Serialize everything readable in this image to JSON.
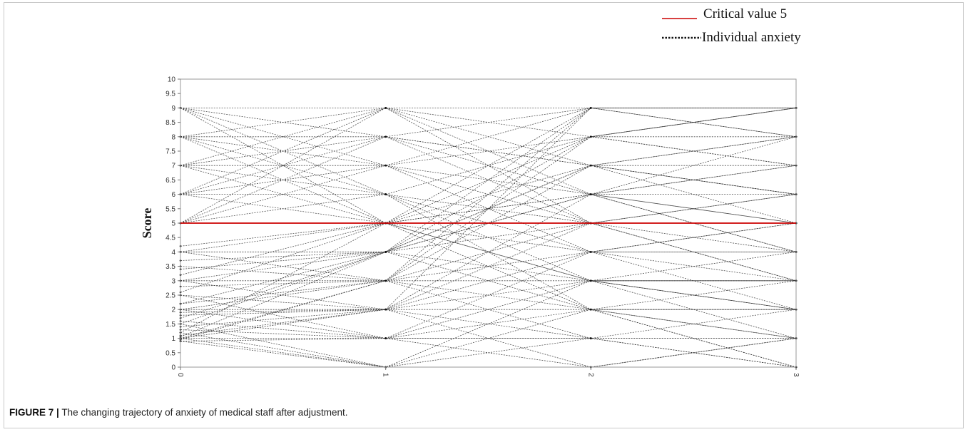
{
  "caption": {
    "label": "FIGURE 7 |",
    "text": "The changing trajectory of anxiety of medical staff after adjustment."
  },
  "chart_data": {
    "type": "line",
    "title": "",
    "xlabel": "",
    "ylabel": "Score",
    "x_ticks": [
      "0",
      "1",
      "2",
      "3"
    ],
    "x": [
      0,
      1,
      2,
      3
    ],
    "xlim": [
      0,
      3
    ],
    "ylim": [
      0,
      10
    ],
    "y_ticks": [
      "0",
      "0.5",
      "1",
      "1.5",
      "2",
      "2.5",
      "3",
      "3.5",
      "4",
      "4.5",
      "5",
      "5.5",
      "6",
      "6.5",
      "7",
      "7.5",
      "8",
      "8.5",
      "9",
      "9.5",
      "10"
    ],
    "grid": false,
    "legend_position": "top-right",
    "reference_line": {
      "name": "Critical value 5",
      "y": 5,
      "color": "#cc0000"
    },
    "series_group": {
      "name": "Individual anxiety",
      "color": "#333333",
      "style": "dotted"
    },
    "trajectories": [
      [
        9,
        9,
        9,
        9
      ],
      [
        9,
        8,
        7,
        6
      ],
      [
        9,
        7,
        5,
        3
      ],
      [
        9,
        6,
        3,
        1
      ],
      [
        9,
        5,
        9,
        8
      ],
      [
        8,
        9,
        8,
        7
      ],
      [
        8,
        8,
        6,
        5
      ],
      [
        8,
        7,
        9,
        9
      ],
      [
        8,
        6,
        4,
        2
      ],
      [
        8,
        5,
        2,
        0
      ],
      [
        7,
        9,
        6,
        4
      ],
      [
        7,
        8,
        7,
        8
      ],
      [
        7,
        7,
        8,
        9
      ],
      [
        7,
        6,
        5,
        5
      ],
      [
        7,
        5,
        3,
        2
      ],
      [
        6,
        9,
        7,
        5
      ],
      [
        6,
        8,
        5,
        3
      ],
      [
        6,
        7,
        6,
        7
      ],
      [
        6,
        6,
        8,
        8
      ],
      [
        6,
        5,
        4,
        4
      ],
      [
        5,
        9,
        5,
        6
      ],
      [
        5,
        8,
        9,
        9
      ],
      [
        5,
        7,
        4,
        3
      ],
      [
        5,
        6,
        2,
        1
      ],
      [
        5,
        5,
        5,
        5
      ],
      [
        4.2,
        5,
        6,
        6
      ],
      [
        4,
        4,
        5,
        5
      ],
      [
        4,
        3,
        1,
        0
      ],
      [
        4,
        5,
        7,
        8
      ],
      [
        4,
        4,
        3,
        3
      ],
      [
        3.7,
        4,
        2,
        1
      ],
      [
        3.5,
        3,
        4,
        4
      ],
      [
        3,
        3,
        3,
        3
      ],
      [
        3,
        2,
        1,
        1
      ],
      [
        3,
        4,
        6,
        7
      ],
      [
        2.8,
        3,
        5,
        6
      ],
      [
        2.5,
        2,
        2,
        2
      ],
      [
        2.5,
        1,
        0,
        0
      ],
      [
        2.2,
        3,
        8,
        9
      ],
      [
        2,
        2,
        4,
        5
      ],
      [
        2,
        1,
        1,
        2
      ],
      [
        2,
        3,
        2,
        0
      ],
      [
        1.8,
        2,
        3,
        4
      ],
      [
        1.6,
        1,
        2,
        3
      ],
      [
        1.5,
        0,
        1,
        1
      ],
      [
        1.4,
        2,
        6,
        8
      ],
      [
        1.3,
        1,
        3,
        2
      ],
      [
        1.2,
        0,
        0,
        1
      ],
      [
        1.1,
        2,
        5,
        4
      ],
      [
        1,
        1,
        1,
        0
      ],
      [
        1,
        0,
        2,
        2
      ],
      [
        1,
        3,
        7,
        6
      ],
      [
        0.9,
        1,
        4,
        5
      ],
      [
        0.9,
        0,
        3,
        3
      ],
      [
        1,
        2,
        0,
        1
      ],
      [
        1.5,
        4,
        9,
        9
      ],
      [
        1.2,
        5,
        8,
        7
      ],
      [
        2.2,
        4,
        6,
        5
      ],
      [
        3.2,
        5,
        3,
        2
      ],
      [
        0.95,
        3,
        9,
        9
      ],
      [
        1.7,
        4,
        7,
        6
      ],
      [
        2.6,
        5,
        6,
        4
      ],
      [
        1.9,
        2,
        9,
        8
      ],
      [
        1.05,
        4,
        8,
        9
      ],
      [
        3.4,
        4,
        7,
        7
      ]
    ]
  }
}
